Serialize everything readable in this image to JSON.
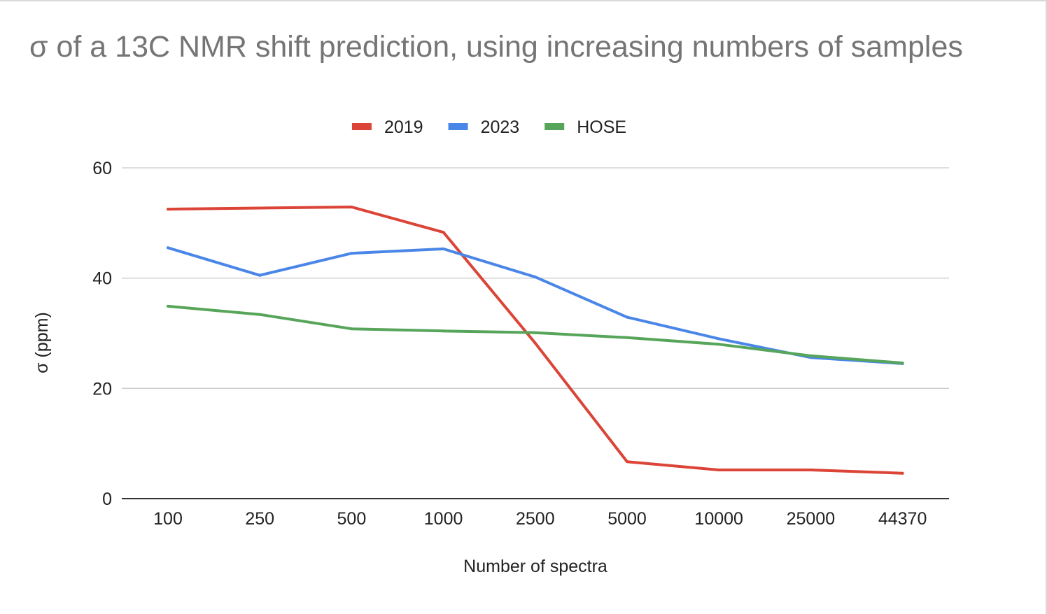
{
  "chart_data": {
    "type": "line",
    "title": "σ of a 13C NMR shift prediction, using increasing numbers of samples",
    "xlabel": "Number of spectra",
    "ylabel": "σ (ppm)",
    "categories": [
      "100",
      "250",
      "500",
      "1000",
      "2500",
      "5000",
      "10000",
      "25000",
      "44370"
    ],
    "ylim": [
      0,
      60
    ],
    "yticks": [
      "0",
      "20",
      "40",
      "60"
    ],
    "grid": "horizontal",
    "legend_position": "top",
    "series": [
      {
        "name": "2019",
        "color": "#db4437",
        "values": [
          52.5,
          52.7,
          52.9,
          48.3,
          28.2,
          6.7,
          5.2,
          5.2,
          4.6
        ]
      },
      {
        "name": "2023",
        "color": "#4a86e8",
        "values": [
          45.5,
          40.5,
          44.5,
          45.3,
          40.2,
          32.9,
          29.0,
          25.6,
          24.5
        ]
      },
      {
        "name": "HOSE",
        "color": "#57a55a",
        "values": [
          34.9,
          33.4,
          30.8,
          30.4,
          30.1,
          29.2,
          28.0,
          25.9,
          24.6
        ]
      }
    ]
  }
}
